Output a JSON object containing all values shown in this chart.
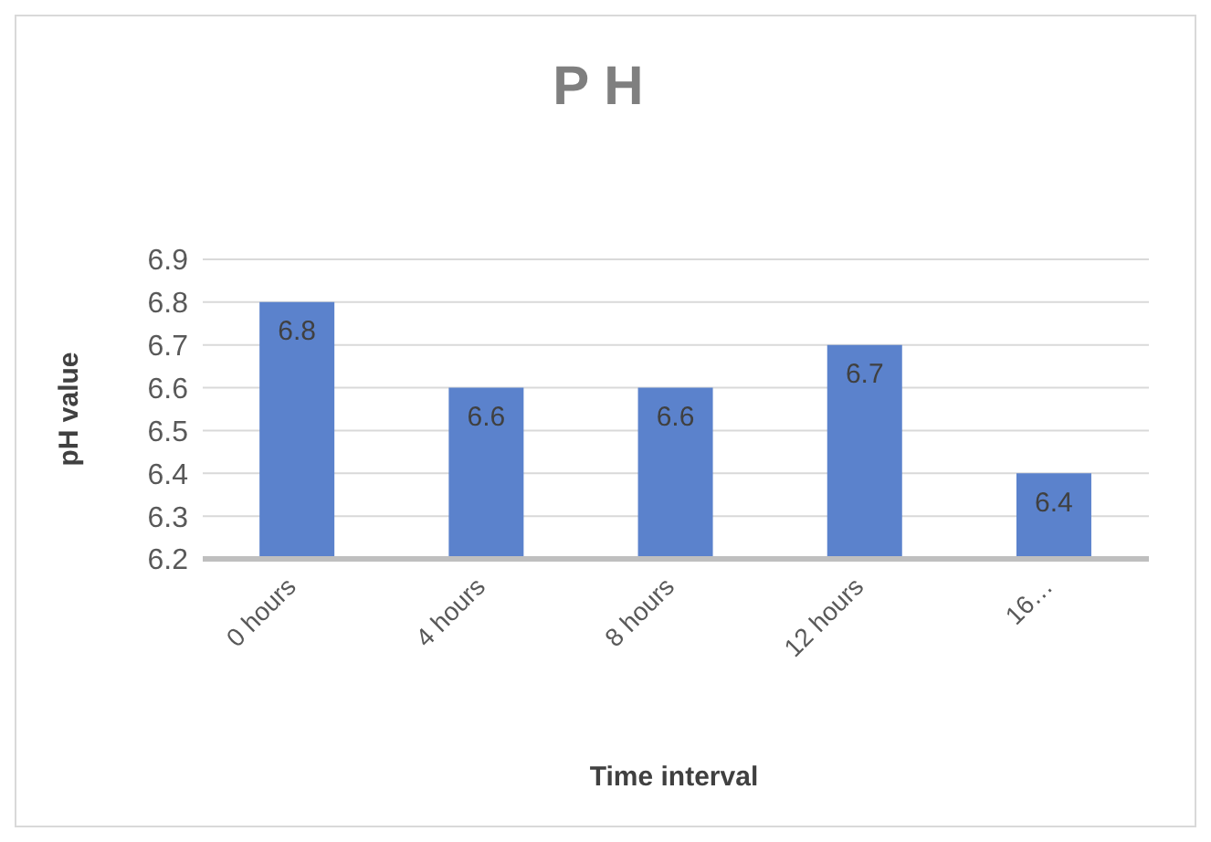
{
  "chart_data": {
    "type": "bar",
    "title": "PH",
    "xlabel": "Time interval",
    "ylabel": "pH  value",
    "categories": [
      "0 hours",
      "4 hours",
      "8 hours",
      "12 hours",
      "16…"
    ],
    "values": [
      6.8,
      6.6,
      6.6,
      6.7,
      6.4
    ],
    "color": "#5b82cc",
    "ylim": [
      6.2,
      6.9
    ],
    "yticks": [
      6.2,
      6.3,
      6.4,
      6.5,
      6.6,
      6.7,
      6.8,
      6.9
    ],
    "grid": "y",
    "data_labels": true
  }
}
